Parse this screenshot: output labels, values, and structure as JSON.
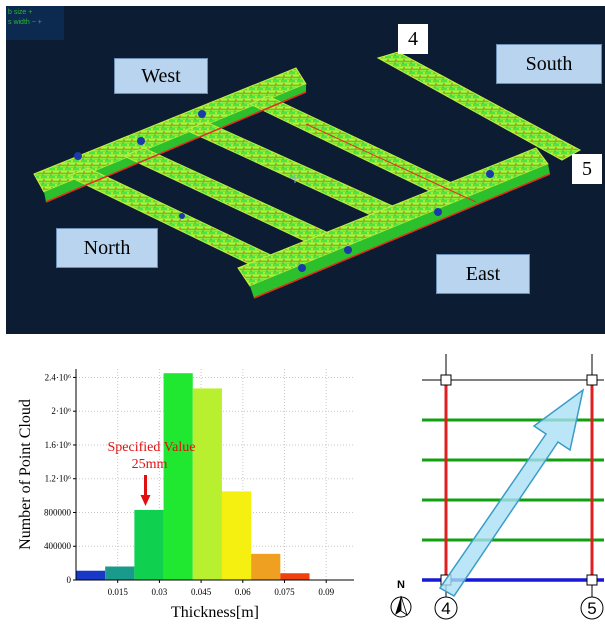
{
  "viewport": {
    "hud_line1": "b  size   +",
    "hud_line2": "s width  −  +",
    "labels": {
      "west": "West",
      "south": "South",
      "north": "North",
      "east": "East"
    },
    "grid_4": "4",
    "grid_5": "5"
  },
  "chart_data": {
    "type": "bar",
    "xlabel": "Thickness[m]",
    "ylabel": "Number of Point Cloud",
    "xlim": [
      0.0,
      0.1
    ],
    "ylim": [
      0,
      2500000
    ],
    "xticks": [
      "0.015",
      "0.03",
      "0.045",
      "0.06",
      "0.075",
      "0.09"
    ],
    "xtick_values": [
      0.015,
      0.03,
      0.045,
      0.06,
      0.075,
      0.09
    ],
    "yticks": [
      "0",
      "400000",
      "800000",
      "1.2·10⁶",
      "1.6·10⁶",
      "2·10⁶",
      "2.4·10⁶"
    ],
    "ytick_values": [
      0,
      400000,
      800000,
      1200000,
      1600000,
      2000000,
      2400000
    ],
    "bins": [
      {
        "x0": 0.0,
        "x1": 0.0105,
        "value": 110000,
        "color": "#1838c8"
      },
      {
        "x0": 0.0105,
        "x1": 0.021,
        "value": 160000,
        "color": "#1a9a8a"
      },
      {
        "x0": 0.021,
        "x1": 0.0315,
        "value": 830000,
        "color": "#10d050"
      },
      {
        "x0": 0.0315,
        "x1": 0.042,
        "value": 2450000,
        "color": "#20e830"
      },
      {
        "x0": 0.042,
        "x1": 0.0525,
        "value": 2270000,
        "color": "#b8f030"
      },
      {
        "x0": 0.0525,
        "x1": 0.063,
        "value": 1050000,
        "color": "#f5f010"
      },
      {
        "x0": 0.063,
        "x1": 0.0735,
        "value": 310000,
        "color": "#f0a020"
      },
      {
        "x0": 0.0735,
        "x1": 0.084,
        "value": 80000,
        "color": "#f04010"
      }
    ],
    "grid": true,
    "annotation": {
      "line1": "Specified Value",
      "line2": "25mm",
      "value": 0.025,
      "color": "#e01010"
    }
  },
  "plan": {
    "north_label": "N",
    "grid_4": "4",
    "grid_5": "5",
    "colors": {
      "columns": "#e02020",
      "beams": "#10a010",
      "base": "#1818d8",
      "arrow": "#a9e0f5"
    }
  }
}
